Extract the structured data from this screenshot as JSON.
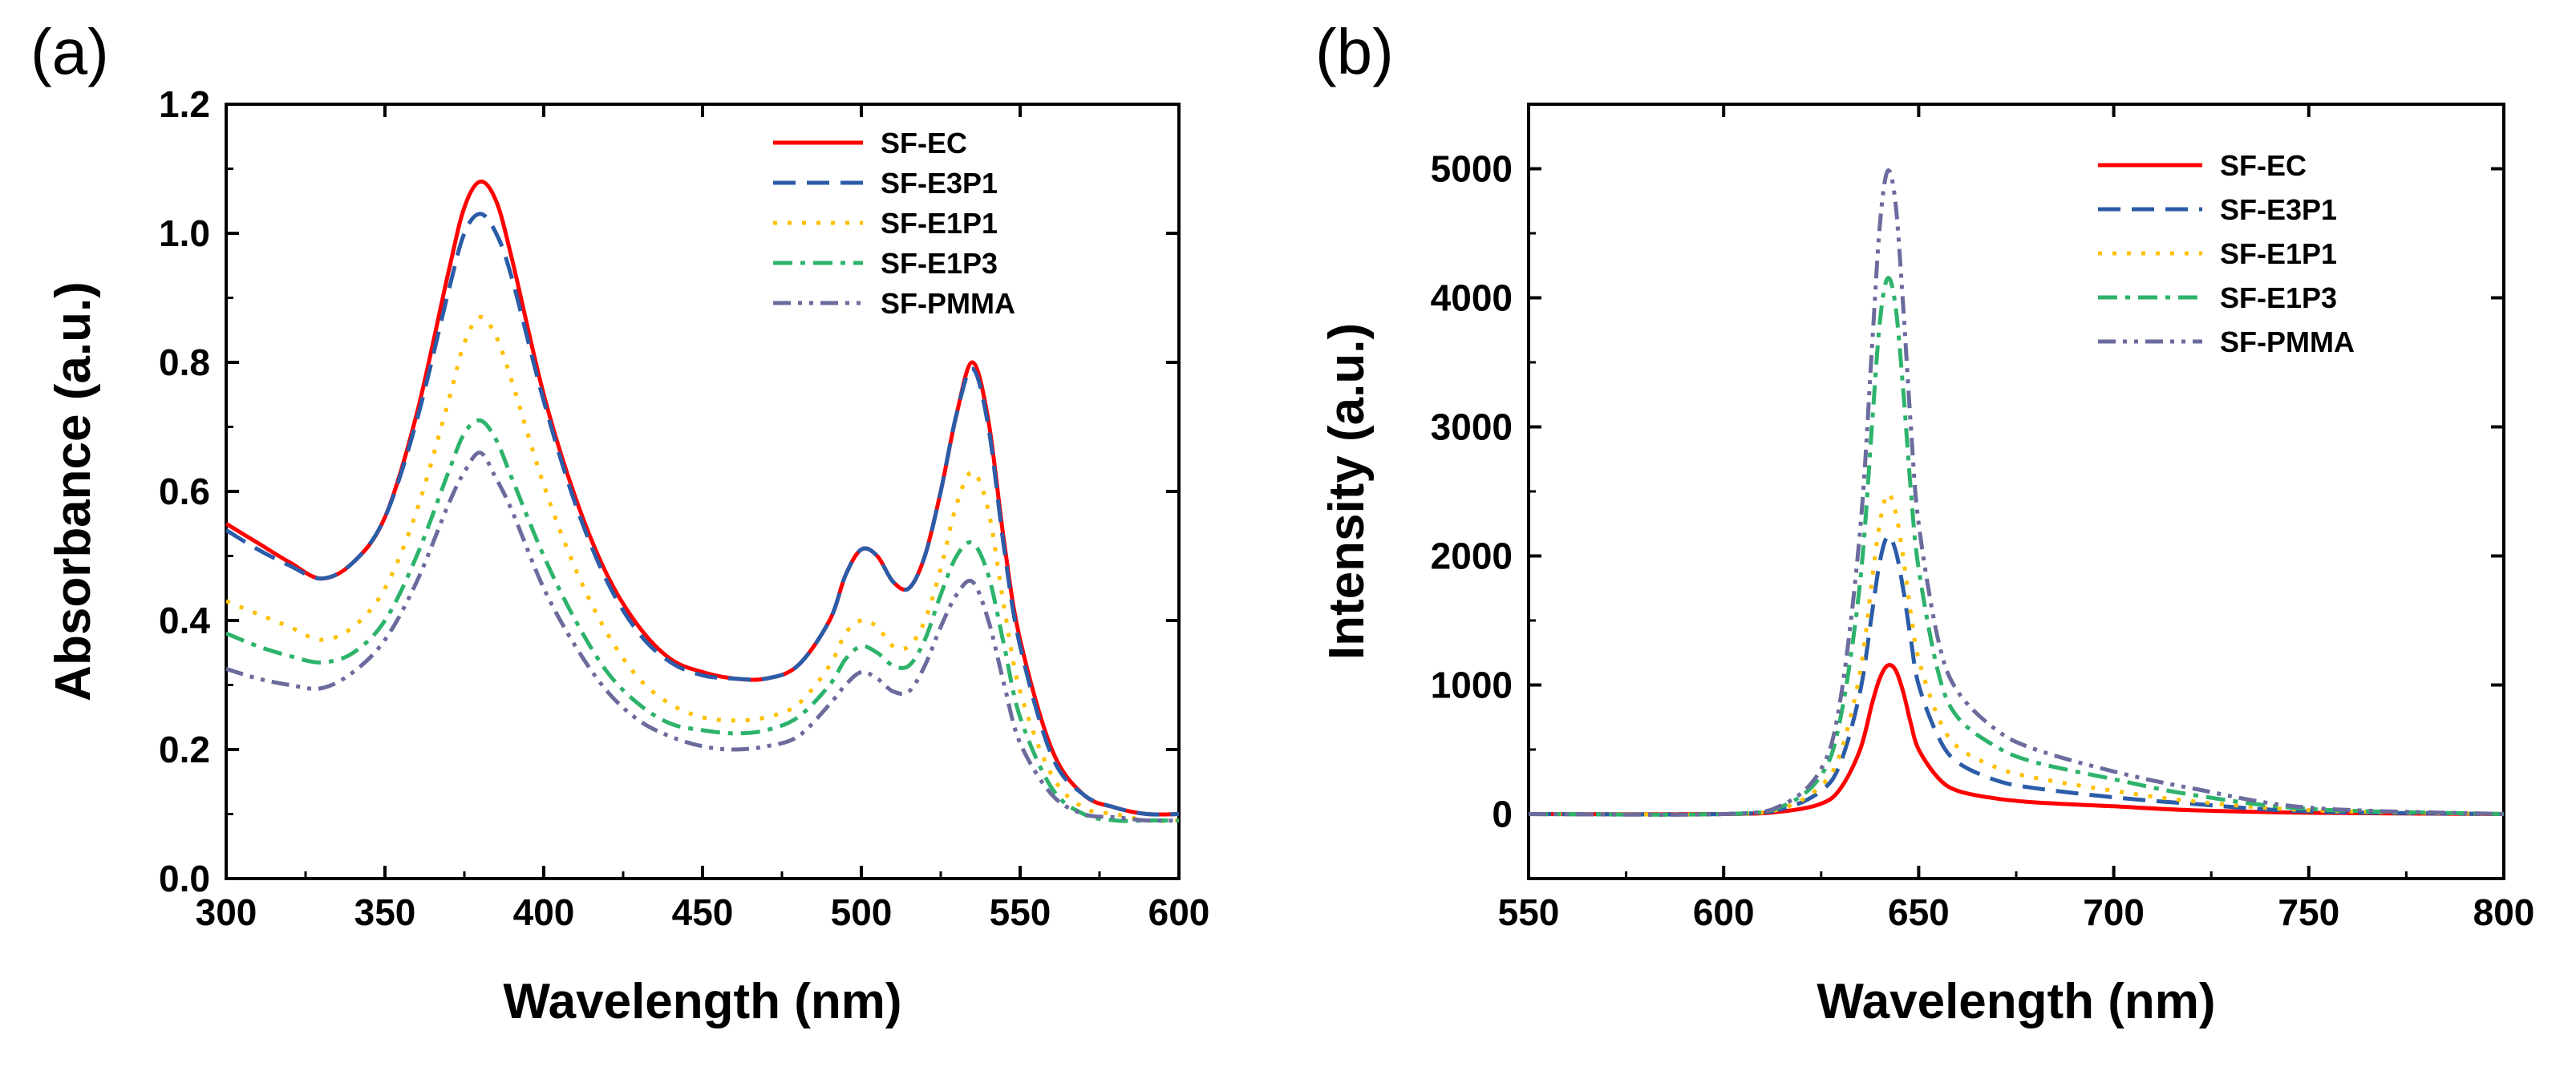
{
  "chart_data": [
    {
      "type": "line",
      "panel_label": "(a)",
      "xlabel": "Wavelength (nm)",
      "ylabel": "Absorbance (a.u.)",
      "xlim": [
        300,
        600
      ],
      "ylim": [
        0.0,
        1.2
      ],
      "xticks": [
        300,
        350,
        400,
        450,
        500,
        550,
        600
      ],
      "yticks": [
        0.0,
        0.2,
        0.4,
        0.6,
        0.8,
        1.0,
        1.2
      ],
      "xtick_labels": [
        "300",
        "350",
        "400",
        "450",
        "500",
        "550",
        "600"
      ],
      "ytick_labels": [
        "0.0",
        "0.2",
        "0.4",
        "0.6",
        "0.8",
        "1.0",
        "1.2"
      ],
      "legend_position": "top-right",
      "series": [
        {
          "name": "SF-EC",
          "color": "#ff0000",
          "dash": "solid",
          "x": [
            300,
            310,
            320,
            330,
            340,
            350,
            360,
            370,
            375,
            380,
            385,
            390,
            400,
            410,
            420,
            430,
            440,
            450,
            460,
            470,
            480,
            490,
            495,
            500,
            505,
            510,
            515,
            520,
            525,
            530,
            535,
            540,
            545,
            550,
            560,
            570,
            580,
            590,
            600
          ],
          "y": [
            0.55,
            0.52,
            0.49,
            0.465,
            0.49,
            0.56,
            0.72,
            0.94,
            1.04,
            1.08,
            1.05,
            0.96,
            0.75,
            0.59,
            0.47,
            0.39,
            0.34,
            0.32,
            0.31,
            0.31,
            0.33,
            0.4,
            0.47,
            0.51,
            0.5,
            0.46,
            0.45,
            0.5,
            0.6,
            0.72,
            0.8,
            0.71,
            0.52,
            0.37,
            0.2,
            0.13,
            0.11,
            0.1,
            0.1
          ]
        },
        {
          "name": "SF-E3P1",
          "color": "#2b5ca8",
          "dash": "long-dash",
          "x": [
            300,
            310,
            320,
            330,
            340,
            350,
            360,
            370,
            375,
            380,
            385,
            390,
            400,
            410,
            420,
            430,
            440,
            450,
            460,
            470,
            480,
            490,
            495,
            500,
            505,
            510,
            515,
            520,
            525,
            530,
            535,
            540,
            545,
            550,
            560,
            570,
            580,
            590,
            600
          ],
          "y": [
            0.54,
            0.51,
            0.485,
            0.465,
            0.49,
            0.56,
            0.71,
            0.91,
            1.0,
            1.03,
            1.0,
            0.93,
            0.74,
            0.58,
            0.46,
            0.38,
            0.335,
            0.315,
            0.31,
            0.31,
            0.33,
            0.4,
            0.47,
            0.51,
            0.5,
            0.46,
            0.45,
            0.5,
            0.6,
            0.72,
            0.79,
            0.7,
            0.51,
            0.36,
            0.19,
            0.13,
            0.11,
            0.1,
            0.1
          ]
        },
        {
          "name": "SF-E1P1",
          "color": "#ffc000",
          "dash": "dot",
          "x": [
            300,
            310,
            320,
            330,
            340,
            350,
            360,
            370,
            375,
            380,
            385,
            390,
            400,
            410,
            420,
            430,
            440,
            450,
            460,
            470,
            480,
            490,
            495,
            500,
            505,
            510,
            515,
            520,
            525,
            530,
            535,
            540,
            545,
            550,
            560,
            570,
            580,
            590,
            600
          ],
          "y": [
            0.43,
            0.41,
            0.39,
            0.37,
            0.39,
            0.45,
            0.57,
            0.74,
            0.83,
            0.87,
            0.84,
            0.77,
            0.61,
            0.48,
            0.38,
            0.31,
            0.27,
            0.25,
            0.245,
            0.25,
            0.27,
            0.33,
            0.38,
            0.4,
            0.39,
            0.36,
            0.36,
            0.4,
            0.48,
            0.58,
            0.63,
            0.57,
            0.42,
            0.29,
            0.16,
            0.11,
            0.1,
            0.09,
            0.09
          ]
        },
        {
          "name": "SF-E1P3",
          "color": "#2db36b",
          "dash": "dash-dot",
          "x": [
            300,
            310,
            320,
            330,
            340,
            350,
            360,
            370,
            375,
            380,
            385,
            390,
            400,
            410,
            420,
            430,
            440,
            450,
            460,
            470,
            480,
            490,
            495,
            500,
            505,
            510,
            515,
            520,
            525,
            530,
            535,
            540,
            545,
            550,
            560,
            570,
            580,
            590,
            600
          ],
          "y": [
            0.38,
            0.36,
            0.345,
            0.335,
            0.35,
            0.4,
            0.5,
            0.63,
            0.69,
            0.71,
            0.68,
            0.62,
            0.5,
            0.4,
            0.32,
            0.27,
            0.24,
            0.23,
            0.225,
            0.23,
            0.25,
            0.3,
            0.34,
            0.36,
            0.35,
            0.33,
            0.33,
            0.37,
            0.44,
            0.5,
            0.52,
            0.47,
            0.36,
            0.25,
            0.14,
            0.1,
            0.09,
            0.09,
            0.09
          ]
        },
        {
          "name": "SF-PMMA",
          "color": "#6b6b9e",
          "dash": "dash-dot-dot",
          "x": [
            300,
            310,
            320,
            330,
            340,
            350,
            360,
            370,
            375,
            380,
            385,
            390,
            400,
            410,
            420,
            430,
            440,
            450,
            460,
            470,
            480,
            490,
            495,
            500,
            505,
            510,
            515,
            520,
            525,
            530,
            535,
            540,
            545,
            550,
            560,
            570,
            580,
            590,
            600
          ],
          "y": [
            0.325,
            0.31,
            0.3,
            0.295,
            0.32,
            0.37,
            0.46,
            0.58,
            0.63,
            0.66,
            0.62,
            0.57,
            0.45,
            0.36,
            0.29,
            0.245,
            0.22,
            0.205,
            0.2,
            0.205,
            0.22,
            0.27,
            0.3,
            0.32,
            0.31,
            0.29,
            0.29,
            0.33,
            0.39,
            0.44,
            0.46,
            0.4,
            0.3,
            0.21,
            0.13,
            0.1,
            0.095,
            0.09,
            0.09
          ]
        }
      ]
    },
    {
      "type": "line",
      "panel_label": "(b)",
      "xlabel": "Wavelength (nm)",
      "ylabel": "Intensity (a.u.)",
      "xlim": [
        550,
        800
      ],
      "ylim": [
        -500,
        5500
      ],
      "xticks": [
        550,
        600,
        650,
        700,
        750,
        800
      ],
      "yticks": [
        0,
        1000,
        2000,
        3000,
        4000,
        5000
      ],
      "xtick_labels": [
        "550",
        "600",
        "650",
        "700",
        "750",
        "800"
      ],
      "ytick_labels": [
        "0",
        "1000",
        "2000",
        "3000",
        "4000",
        "5000"
      ],
      "legend_position": "top-right",
      "series": [
        {
          "name": "SF-EC",
          "color": "#ff0000",
          "dash": "solid",
          "x": [
            550,
            600,
            615,
            625,
            630,
            635,
            638,
            640,
            642,
            644,
            646,
            648,
            650,
            655,
            660,
            670,
            680,
            700,
            720,
            750,
            800
          ],
          "y": [
            0,
            0,
            20,
            80,
            200,
            500,
            850,
            1050,
            1150,
            1120,
            950,
            700,
            500,
            280,
            180,
            120,
            90,
            60,
            30,
            10,
            0
          ]
        },
        {
          "name": "SF-E3P1",
          "color": "#2b5ca8",
          "dash": "long-dash",
          "x": [
            550,
            600,
            615,
            625,
            630,
            635,
            638,
            640,
            642,
            644,
            646,
            648,
            650,
            655,
            660,
            670,
            680,
            700,
            720,
            750,
            800
          ],
          "y": [
            0,
            0,
            40,
            180,
            400,
            950,
            1550,
            1950,
            2150,
            2050,
            1750,
            1350,
            1000,
            600,
            400,
            260,
            200,
            130,
            80,
            20,
            0
          ]
        },
        {
          "name": "SF-E1P1",
          "color": "#ffc000",
          "dash": "dot",
          "x": [
            550,
            600,
            615,
            625,
            630,
            635,
            638,
            640,
            642,
            644,
            646,
            648,
            650,
            655,
            660,
            670,
            680,
            700,
            720,
            750,
            800
          ],
          "y": [
            0,
            0,
            45,
            220,
            480,
            1100,
            1800,
            2250,
            2480,
            2350,
            2000,
            1550,
            1200,
            750,
            520,
            360,
            280,
            180,
            100,
            30,
            0
          ]
        },
        {
          "name": "SF-E1P3",
          "color": "#2db36b",
          "dash": "dash-dot",
          "x": [
            550,
            600,
            615,
            625,
            630,
            635,
            638,
            640,
            642,
            644,
            646,
            648,
            650,
            655,
            660,
            670,
            680,
            700,
            720,
            750,
            800
          ],
          "y": [
            0,
            0,
            60,
            300,
            750,
            1800,
            3000,
            3800,
            4150,
            3950,
            3300,
            2500,
            1900,
            1100,
            750,
            520,
            400,
            270,
            150,
            40,
            0
          ]
        },
        {
          "name": "SF-PMMA",
          "color": "#6b6b9e",
          "dash": "dash-dot-dot",
          "x": [
            550,
            600,
            615,
            625,
            630,
            635,
            638,
            640,
            642,
            644,
            646,
            648,
            650,
            655,
            660,
            670,
            680,
            700,
            720,
            750,
            800
          ],
          "y": [
            0,
            0,
            70,
            350,
            900,
            2200,
            3600,
            4550,
            4980,
            4750,
            3950,
            3000,
            2250,
            1350,
            950,
            650,
            500,
            330,
            200,
            50,
            0
          ]
        }
      ]
    }
  ]
}
